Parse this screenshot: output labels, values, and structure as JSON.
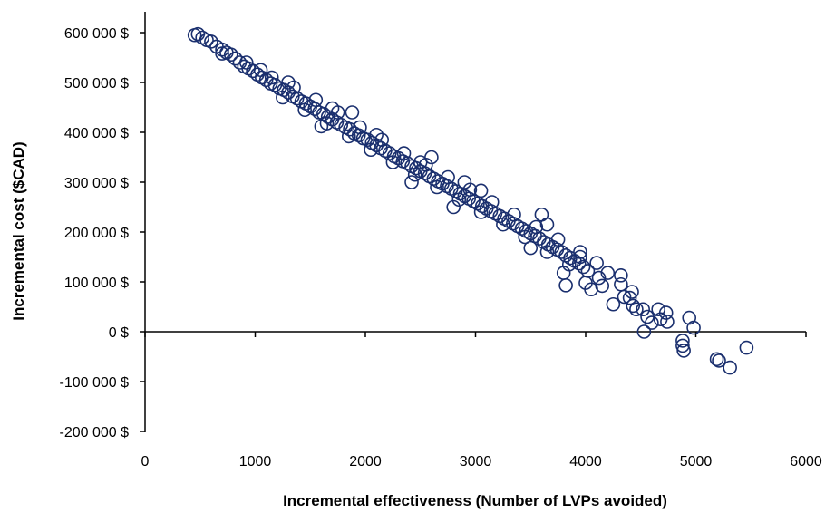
{
  "chart_data": {
    "type": "scatter",
    "title": "",
    "xlabel": "Incremental effectiveness (Number of LVPs avoided)",
    "ylabel": "Incremental cost ($CAD)",
    "xlim": [
      0,
      6000
    ],
    "ylim": [
      -200000,
      600000
    ],
    "x_ticks": [
      0,
      1000,
      2000,
      3000,
      4000,
      5000,
      6000
    ],
    "x_tick_labels": [
      "0",
      "1000",
      "2000",
      "3000",
      "4000",
      "5000",
      "6000"
    ],
    "y_ticks": [
      -200000,
      -100000,
      0,
      100000,
      200000,
      300000,
      400000,
      500000,
      600000
    ],
    "y_tick_labels": [
      "-200 000 $",
      "-100 000 $",
      "0 $",
      "100 000 $",
      "200 000 $",
      "300 000 $",
      "400 000 $",
      "500 000 $",
      "600 000 $"
    ],
    "grid": false,
    "legend": "none",
    "marker": "open-circle",
    "color": "#1a2f6e",
    "series": [
      {
        "values": [
          [
            450,
            595000
          ],
          [
            480,
            597000
          ],
          [
            520,
            590000
          ],
          [
            560,
            585000
          ],
          [
            600,
            582000
          ],
          [
            650,
            572000
          ],
          [
            700,
            566000
          ],
          [
            740,
            560000
          ],
          [
            780,
            556000
          ],
          [
            820,
            548000
          ],
          [
            860,
            540000
          ],
          [
            900,
            532000
          ],
          [
            940,
            528000
          ],
          [
            980,
            523000
          ],
          [
            1020,
            516000
          ],
          [
            1060,
            510000
          ],
          [
            1100,
            505000
          ],
          [
            1140,
            498000
          ],
          [
            1180,
            495000
          ],
          [
            1220,
            488000
          ],
          [
            1260,
            485000
          ],
          [
            1300,
            480000
          ],
          [
            1340,
            472000
          ],
          [
            1380,
            468000
          ],
          [
            1420,
            462000
          ],
          [
            1460,
            458000
          ],
          [
            1500,
            452000
          ],
          [
            1540,
            447000
          ],
          [
            1580,
            440000
          ],
          [
            1620,
            437000
          ],
          [
            1660,
            431000
          ],
          [
            1700,
            426000
          ],
          [
            1740,
            420000
          ],
          [
            1780,
            415000
          ],
          [
            1820,
            410000
          ],
          [
            1860,
            406000
          ],
          [
            1900,
            398000
          ],
          [
            1940,
            394000
          ],
          [
            1980,
            388000
          ],
          [
            2020,
            385000
          ],
          [
            2060,
            379000
          ],
          [
            2100,
            374000
          ],
          [
            2140,
            368000
          ],
          [
            2180,
            363000
          ],
          [
            2220,
            358000
          ],
          [
            2260,
            352000
          ],
          [
            2300,
            348000
          ],
          [
            2340,
            342000
          ],
          [
            2380,
            338000
          ],
          [
            2420,
            332000
          ],
          [
            2460,
            328000
          ],
          [
            2500,
            322000
          ],
          [
            2540,
            318000
          ],
          [
            2580,
            312000
          ],
          [
            2620,
            307000
          ],
          [
            2660,
            302000
          ],
          [
            2700,
            297000
          ],
          [
            2740,
            292000
          ],
          [
            2780,
            287000
          ],
          [
            2820,
            282000
          ],
          [
            2860,
            277000
          ],
          [
            2900,
            272000
          ],
          [
            2940,
            267000
          ],
          [
            2980,
            262000
          ],
          [
            3020,
            257000
          ],
          [
            3060,
            252000
          ],
          [
            3100,
            247000
          ],
          [
            3140,
            242000
          ],
          [
            3180,
            237000
          ],
          [
            3220,
            232000
          ],
          [
            3260,
            227000
          ],
          [
            3300,
            222000
          ],
          [
            3340,
            217000
          ],
          [
            3380,
            212000
          ],
          [
            3420,
            207000
          ],
          [
            3460,
            202000
          ],
          [
            3500,
            197000
          ],
          [
            3540,
            192000
          ],
          [
            3580,
            187000
          ],
          [
            3620,
            180000
          ],
          [
            3660,
            175000
          ],
          [
            3700,
            170000
          ],
          [
            3740,
            165000
          ],
          [
            3780,
            160000
          ],
          [
            3820,
            153000
          ],
          [
            3860,
            148000
          ],
          [
            3900,
            142000
          ],
          [
            3940,
            137000
          ],
          [
            3980,
            130000
          ],
          [
            4020,
            122000
          ],
          [
            1050,
            525000
          ],
          [
            1150,
            510000
          ],
          [
            1250,
            470000
          ],
          [
            1350,
            490000
          ],
          [
            1450,
            445000
          ],
          [
            1550,
            465000
          ],
          [
            1650,
            418000
          ],
          [
            1750,
            440000
          ],
          [
            1850,
            392000
          ],
          [
            1950,
            410000
          ],
          [
            2050,
            365000
          ],
          [
            2150,
            385000
          ],
          [
            2250,
            340000
          ],
          [
            2350,
            358000
          ],
          [
            2450,
            315000
          ],
          [
            2550,
            335000
          ],
          [
            2650,
            290000
          ],
          [
            2750,
            310000
          ],
          [
            2850,
            265000
          ],
          [
            2950,
            285000
          ],
          [
            3050,
            240000
          ],
          [
            3150,
            260000
          ],
          [
            3250,
            215000
          ],
          [
            3350,
            235000
          ],
          [
            3450,
            190000
          ],
          [
            3550,
            210000
          ],
          [
            3650,
            160000
          ],
          [
            3750,
            185000
          ],
          [
            3850,
            135000
          ],
          [
            3950,
            160000
          ],
          [
            1880,
            440000
          ],
          [
            1600,
            412000
          ],
          [
            2600,
            350000
          ],
          [
            2420,
            300000
          ],
          [
            3050,
            283000
          ],
          [
            2800,
            250000
          ],
          [
            3600,
            235000
          ],
          [
            3500,
            168000
          ],
          [
            3650,
            215000
          ],
          [
            3800,
            118000
          ],
          [
            3820,
            93000
          ],
          [
            3950,
            150000
          ],
          [
            4000,
            98000
          ],
          [
            4050,
            85000
          ],
          [
            4100,
            138000
          ],
          [
            4120,
            108000
          ],
          [
            4150,
            92000
          ],
          [
            4200,
            118000
          ],
          [
            4250,
            55000
          ],
          [
            4320,
            113000
          ],
          [
            4320,
            95000
          ],
          [
            4350,
            70000
          ],
          [
            4400,
            68000
          ],
          [
            4420,
            80000
          ],
          [
            4430,
            52000
          ],
          [
            4460,
            45000
          ],
          [
            4520,
            45000
          ],
          [
            4530,
            0
          ],
          [
            4560,
            30000
          ],
          [
            4600,
            18000
          ],
          [
            4660,
            45000
          ],
          [
            4680,
            25000
          ],
          [
            4730,
            38000
          ],
          [
            4740,
            20000
          ],
          [
            4880,
            -18000
          ],
          [
            4880,
            -28000
          ],
          [
            4890,
            -38000
          ],
          [
            4940,
            28000
          ],
          [
            4980,
            8000
          ],
          [
            5190,
            -55000
          ],
          [
            5210,
            -58000
          ],
          [
            5310,
            -72000
          ],
          [
            5460,
            -32000
          ],
          [
            700,
            558000
          ],
          [
            920,
            540000
          ],
          [
            1300,
            500000
          ],
          [
            1700,
            448000
          ],
          [
            2100,
            395000
          ],
          [
            2500,
            340000
          ],
          [
            2900,
            300000
          ]
        ]
      }
    ]
  }
}
